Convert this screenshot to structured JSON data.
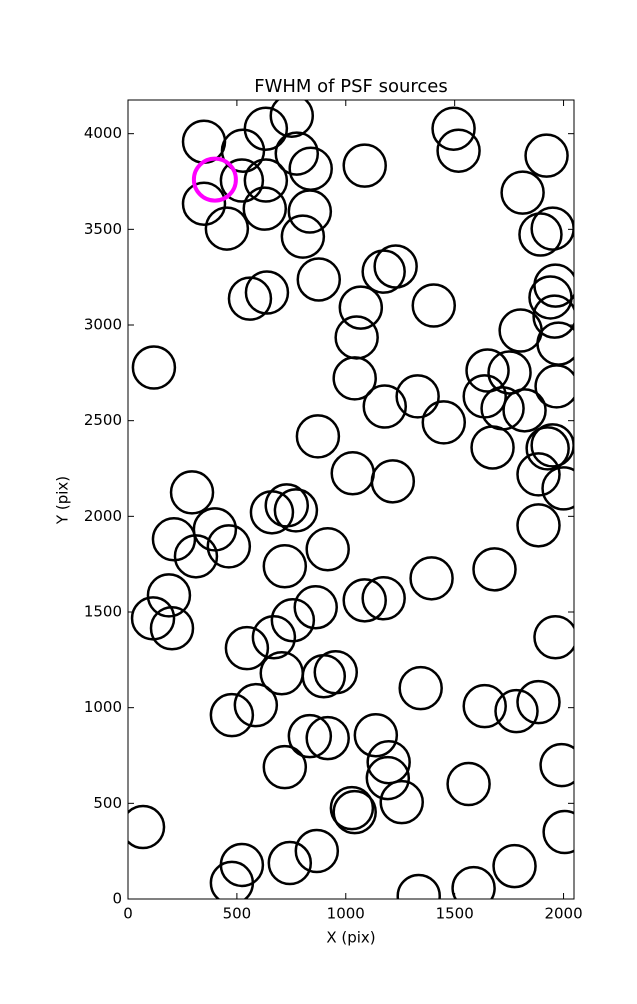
{
  "chart_data": {
    "type": "scatter",
    "title": "FWHM of PSF sources",
    "x_label": "X (pix)",
    "y_label": "Y (pix)",
    "xlim": [
      0,
      2048
    ],
    "ylim": [
      0,
      4176
    ],
    "xticks": [
      0,
      500,
      1000,
      1500,
      2000
    ],
    "yticks": [
      0,
      500,
      1000,
      1500,
      2000,
      2500,
      3000,
      3500,
      4000
    ],
    "grid": false,
    "series": [
      {
        "color": "#000000",
        "x": [
          349,
          528,
          633,
          752,
          775,
          839,
          633,
          523,
          349,
          454,
          628,
          835,
          803,
          1087,
          1495,
          1518,
          1922,
          1812,
          1894,
          1950,
          1963,
          1940,
          1959,
          1977,
          1968,
          1803,
          1752,
          1651,
          1638,
          1720,
          1821,
          1674,
          1927,
          1950,
          1885,
          2000,
          1885,
          1229,
          1174,
          1069,
          1050,
          1404,
          876,
          638,
          560,
          119,
          1041,
          1179,
          1330,
          1450,
          872,
          1032,
          1216,
          294,
          661,
          729,
          771,
          399,
          211,
          312,
          463,
          917,
          720,
          188,
          115,
          202,
          757,
          862,
          1087,
          1174,
          1394,
          1683,
          546,
          670,
          706,
          899,
          954,
          1963,
          1344,
          1638,
          1784,
          1885,
          587,
          477,
          1138,
          835,
          917,
          1197,
          720,
          1193,
          1257,
          1991,
          1564,
          1028,
          1041,
          69,
          2005,
          867,
          523,
          743,
          477,
          1775,
          1335,
          1587
        ],
        "values": [
          3958,
          3911,
          4026,
          4094,
          3896,
          3817,
          3755,
          3755,
          3634,
          3504,
          3608,
          3593,
          3462,
          3833,
          4026,
          3911,
          3885,
          3692,
          3473,
          3504,
          3206,
          3144,
          3044,
          2903,
          2679,
          2971,
          2752,
          2762,
          2627,
          2564,
          2554,
          2360,
          2355,
          2371,
          2219,
          2146,
          1953,
          3306,
          3279,
          3091,
          2935,
          3102,
          3238,
          3170,
          3138,
          2778,
          2721,
          2574,
          2627,
          2491,
          2418,
          2225,
          2183,
          2125,
          2021,
          2057,
          2031,
          1932,
          1880,
          1791,
          1843,
          1828,
          1739,
          1587,
          1467,
          1415,
          1457,
          1525,
          1561,
          1572,
          1676,
          1723,
          1311,
          1368,
          1180,
          1164,
          1185,
          1368,
          1102,
          1008,
          982,
          1029,
          1013,
          961,
          856,
          851,
          841,
          715,
          689,
          632,
          506,
          700,
          601,
          475,
          454,
          376,
          350,
          251,
          178,
          188,
          84,
          172,
          16,
          57
        ]
      },
      {
        "color": "#ff00ff",
        "x": [
          399
        ],
        "values": [
          3760
        ]
      }
    ]
  }
}
